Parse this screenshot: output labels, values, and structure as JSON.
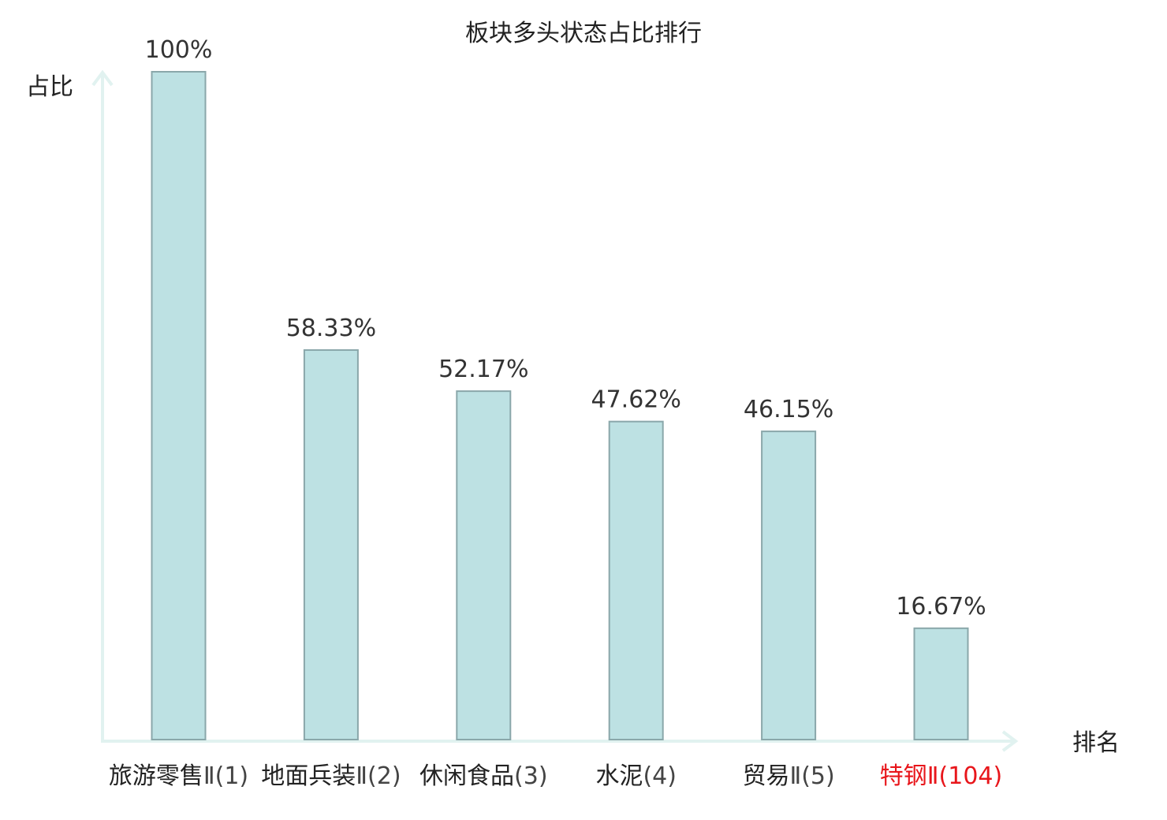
{
  "chart_data": {
    "type": "bar",
    "title": "板块多头状态占比排行",
    "ylabel": "占比",
    "xlabel": "排名",
    "ylim": [
      0,
      100
    ],
    "grid": false,
    "categories": [
      {
        "name": "旅游零售",
        "rank": "Ⅱ(1)",
        "highlight": false
      },
      {
        "name": "地面兵装",
        "rank": "Ⅱ(2)",
        "highlight": false
      },
      {
        "name": "休闲食品",
        "rank": "(3)",
        "highlight": false
      },
      {
        "name": "水泥",
        "rank": "(4)",
        "highlight": false
      },
      {
        "name": "贸易",
        "rank": "Ⅱ(5)",
        "highlight": false
      },
      {
        "name": "特钢",
        "rank": "Ⅱ(104)",
        "highlight": true
      }
    ],
    "values": [
      100,
      58.33,
      52.17,
      47.62,
      46.15,
      16.67
    ],
    "value_labels": [
      "100%",
      "58.33%",
      "52.17%",
      "47.62%",
      "46.15%",
      "16.67%"
    ]
  },
  "colors": {
    "bar_fill": "#bde1e3",
    "bar_stroke": "#8aa7aa",
    "axis": "#e1f2f0",
    "highlight": "#e8161b"
  }
}
